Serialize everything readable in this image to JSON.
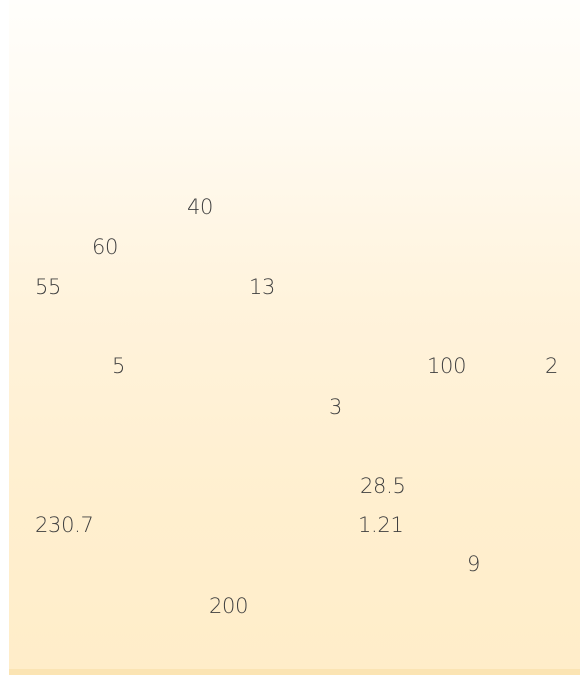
{
  "numbers": {
    "n1": "40",
    "n2": "60",
    "n3": "55",
    "n4": "13",
    "n5": "5",
    "n6": "100",
    "n7": "2",
    "n8": "3",
    "n9": "28.5",
    "n10": "230.7",
    "n11": "1.21",
    "n12": "9",
    "n13": "200"
  }
}
